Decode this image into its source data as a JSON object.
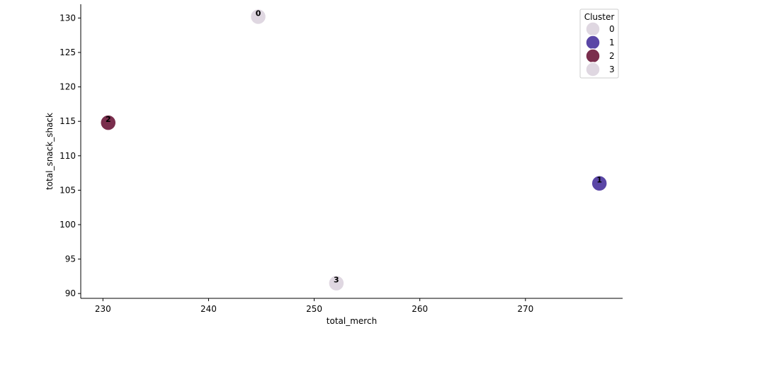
{
  "chart_data": {
    "type": "scatter",
    "title": "",
    "xlabel": "total_merch",
    "ylabel": "total_snack_shack",
    "xlim": [
      227.9,
      279.2
    ],
    "ylim": [
      89.3,
      132.0
    ],
    "x_ticks": [
      230,
      240,
      250,
      260,
      270
    ],
    "y_ticks": [
      90,
      95,
      100,
      105,
      110,
      115,
      120,
      125,
      130
    ],
    "grid": false,
    "legend": {
      "title": "Cluster",
      "placement": "top-right",
      "entries": [
        {
          "label": "0",
          "color": "#dfd7e1"
        },
        {
          "label": "1",
          "color": "#5a46a6"
        },
        {
          "label": "2",
          "color": "#7a2e4d"
        },
        {
          "label": "3",
          "color": "#dfd7e1"
        }
      ]
    },
    "points": [
      {
        "label": "0",
        "cluster": "0",
        "x": 244.7,
        "y": 130.2,
        "color": "#dfd7e1"
      },
      {
        "label": "1",
        "cluster": "1",
        "x": 277.0,
        "y": 106.0,
        "color": "#5a46a6"
      },
      {
        "label": "2",
        "cluster": "2",
        "x": 230.5,
        "y": 114.8,
        "color": "#7a2e4d"
      },
      {
        "label": "3",
        "cluster": "3",
        "x": 252.1,
        "y": 91.5,
        "color": "#dfd7e1"
      }
    ]
  }
}
